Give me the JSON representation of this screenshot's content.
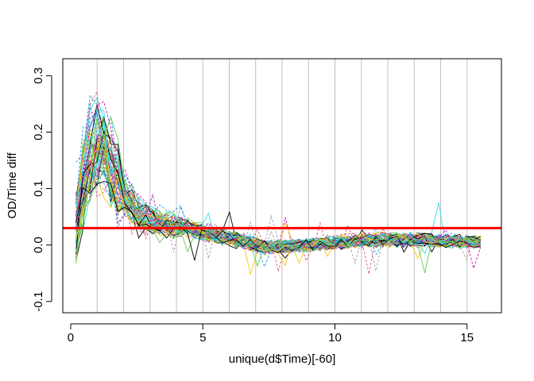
{
  "chart_data": {
    "type": "line",
    "title": "",
    "xlabel": "unique(d$Time)[-60]",
    "ylabel": "OD/Time diff",
    "xlim": [
      -0.3,
      16.3
    ],
    "ylim": [
      -0.12,
      0.33
    ],
    "x_ticks": [
      0,
      5,
      10,
      15
    ],
    "x_tick_labels": [
      "0",
      "5",
      "10",
      "15"
    ],
    "y_ticks": [
      -0.1,
      0.0,
      0.1,
      0.2,
      0.3
    ],
    "y_tick_labels": [
      "-0.1",
      "0.0",
      "0.1",
      "0.2",
      "0.3"
    ],
    "vertical_gridlines_x": [
      1,
      2,
      3,
      4,
      5,
      6,
      7,
      8,
      9,
      10,
      11,
      12,
      13,
      14,
      15
    ],
    "gridline_color": "#bebebe",
    "threshold": {
      "y": 0.03,
      "color": "#ff0000"
    },
    "series_count": 60,
    "series_palette": [
      "#000000",
      "#df536b",
      "#61d04f",
      "#2297e6",
      "#28e2e5",
      "#cd0bbc",
      "#f5c710",
      "#9e9e9e"
    ],
    "x_start": 0.2,
    "x_step": 0.264,
    "mean_curve": {
      "x": [
        0.2,
        0.46,
        0.73,
        1.0,
        1.25,
        1.5,
        2.0,
        2.5,
        3.0,
        4.0,
        5.0,
        6.0,
        7.0,
        7.5,
        8.0,
        9.0,
        10.0,
        11.0,
        12.0,
        13.0,
        14.0,
        15.0,
        15.6
      ],
      "y": [
        0.02,
        0.12,
        0.16,
        0.19,
        0.18,
        0.14,
        0.09,
        0.06,
        0.045,
        0.035,
        0.025,
        0.012,
        0.0,
        -0.005,
        -0.002,
        0.0,
        0.004,
        0.008,
        0.01,
        0.01,
        0.008,
        0.006,
        0.004
      ]
    }
  }
}
